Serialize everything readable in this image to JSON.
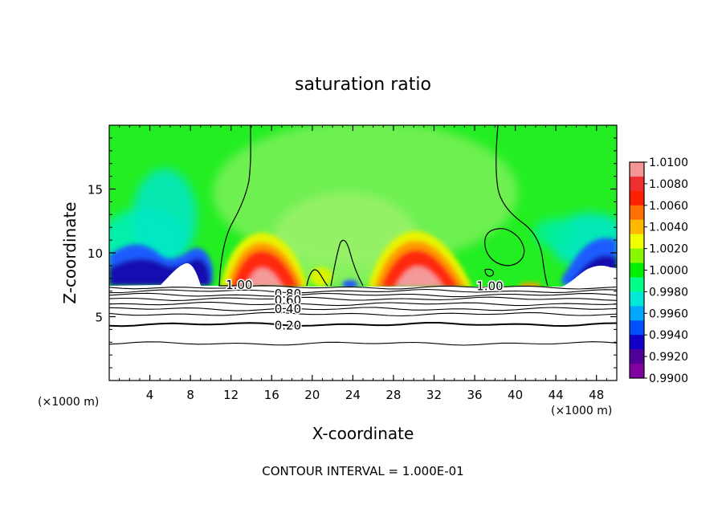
{
  "chart_data": {
    "type": "contour",
    "title": "saturation ratio",
    "xlabel": "X-coordinate",
    "ylabel": "Z-coordinate",
    "x_unit_left": "(×1000 m)",
    "x_unit_right": "(×1000 m)",
    "xlim": [
      0,
      50
    ],
    "ylim": [
      0,
      20
    ],
    "x_ticks": [
      "4",
      "8",
      "12",
      "16",
      "20",
      "24",
      "28",
      "32",
      "36",
      "40",
      "44",
      "48"
    ],
    "y_ticks": [
      "5",
      "10",
      "15"
    ],
    "x_tick_values": [
      4,
      8,
      12,
      16,
      20,
      24,
      28,
      32,
      36,
      40,
      44,
      48
    ],
    "y_tick_values": [
      5,
      10,
      15
    ],
    "contour_interval_text": "CONTOUR INTERVAL = 1.000E-01",
    "contour_labels": [
      {
        "text": "1.00",
        "x": 12.8,
        "y": 7.5
      },
      {
        "text": "1.00",
        "x": 37.5,
        "y": 7.4
      },
      {
        "text": "0.80",
        "x": 17.6,
        "y": 6.8
      },
      {
        "text": "0.60",
        "x": 17.6,
        "y": 6.3
      },
      {
        "text": "0.40",
        "x": 17.6,
        "y": 5.6
      },
      {
        "text": "0.20",
        "x": 17.6,
        "y": 4.3
      }
    ],
    "contour_lines_z": [
      7.3,
      7.0,
      6.7,
      6.4,
      6.0,
      5.6,
      5.2,
      4.4,
      2.9
    ],
    "colorbar": {
      "levels": [
        "1.0100",
        "1.0080",
        "1.0060",
        "1.0040",
        "1.0020",
        "1.0000",
        "0.9980",
        "0.9960",
        "0.9940",
        "0.9920",
        "0.9900"
      ],
      "colors": [
        "#f49696",
        "#f03030",
        "#ff2000",
        "#ff7000",
        "#ffb800",
        "#f0ff00",
        "#88f800",
        "#00ee00",
        "#00ff88",
        "#00e8d8",
        "#00a8ff",
        "#0050ff",
        "#1000c8",
        "#500098",
        "#8000a0"
      ]
    },
    "background_color": "#22ee22"
  }
}
